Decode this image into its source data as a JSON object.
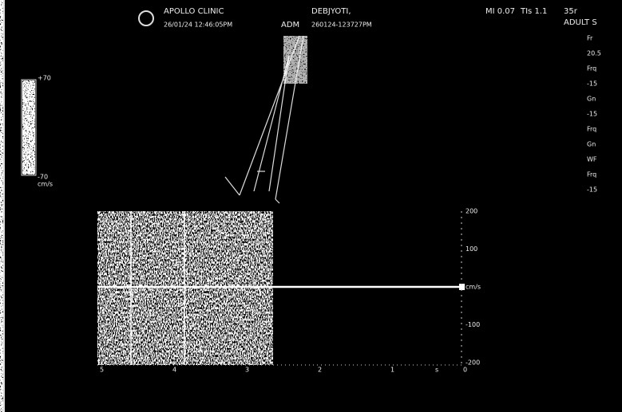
{
  "header": {
    "clinic": "APOLLO CLINIC",
    "datetime": "26/01/24 12:46:05PM",
    "patient": "DEBJYOTI,",
    "operator": "ADM",
    "exam_id": "260124-123727PM",
    "mi": "MI 0.07",
    "tis": "TIs 1.1",
    "frame": "35r",
    "preset": "ADULT S"
  },
  "color_bar": {
    "top": "+70",
    "bottom": "-70",
    "unit": "cm/s"
  },
  "settings": [
    "Fr",
    "20.5",
    "Frq",
    "-15",
    "Gn",
    "-15",
    "Frq",
    "Gn",
    "WF",
    "Frq",
    "-15"
  ],
  "velocity_scale": [
    "200",
    "100",
    "cm/s",
    "-100",
    "-200"
  ],
  "time_axis": [
    "5",
    "4",
    "3",
    "2",
    "1",
    "0"
  ],
  "time_unit": "s"
}
